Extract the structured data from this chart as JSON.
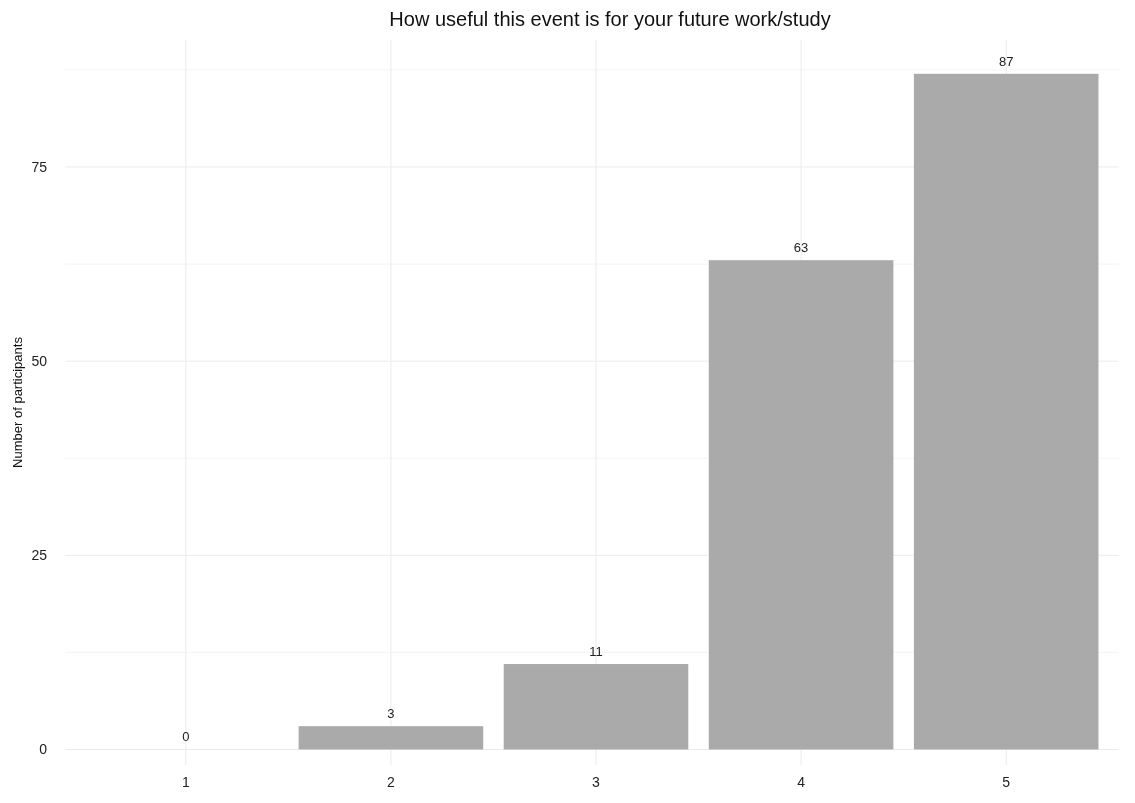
{
  "chart_data": {
    "type": "bar",
    "title": "How useful this event is for your future work/study",
    "ylabel": "Number of participants",
    "categories": [
      "1",
      "2",
      "3",
      "4",
      "5"
    ],
    "values": [
      0,
      3,
      11,
      63,
      87
    ],
    "color": "#aaaaaa",
    "ylim": [
      -2,
      91.35
    ],
    "yticks": [
      0,
      {
        "value": 12.5,
        "label": null
      },
      25,
      {
        "value": 37.5,
        "label": null
      },
      50,
      {
        "value": 62.5,
        "label": null
      },
      75,
      {
        "value": 87.5,
        "label": null
      }
    ],
    "grid": true,
    "data_labels": true
  }
}
